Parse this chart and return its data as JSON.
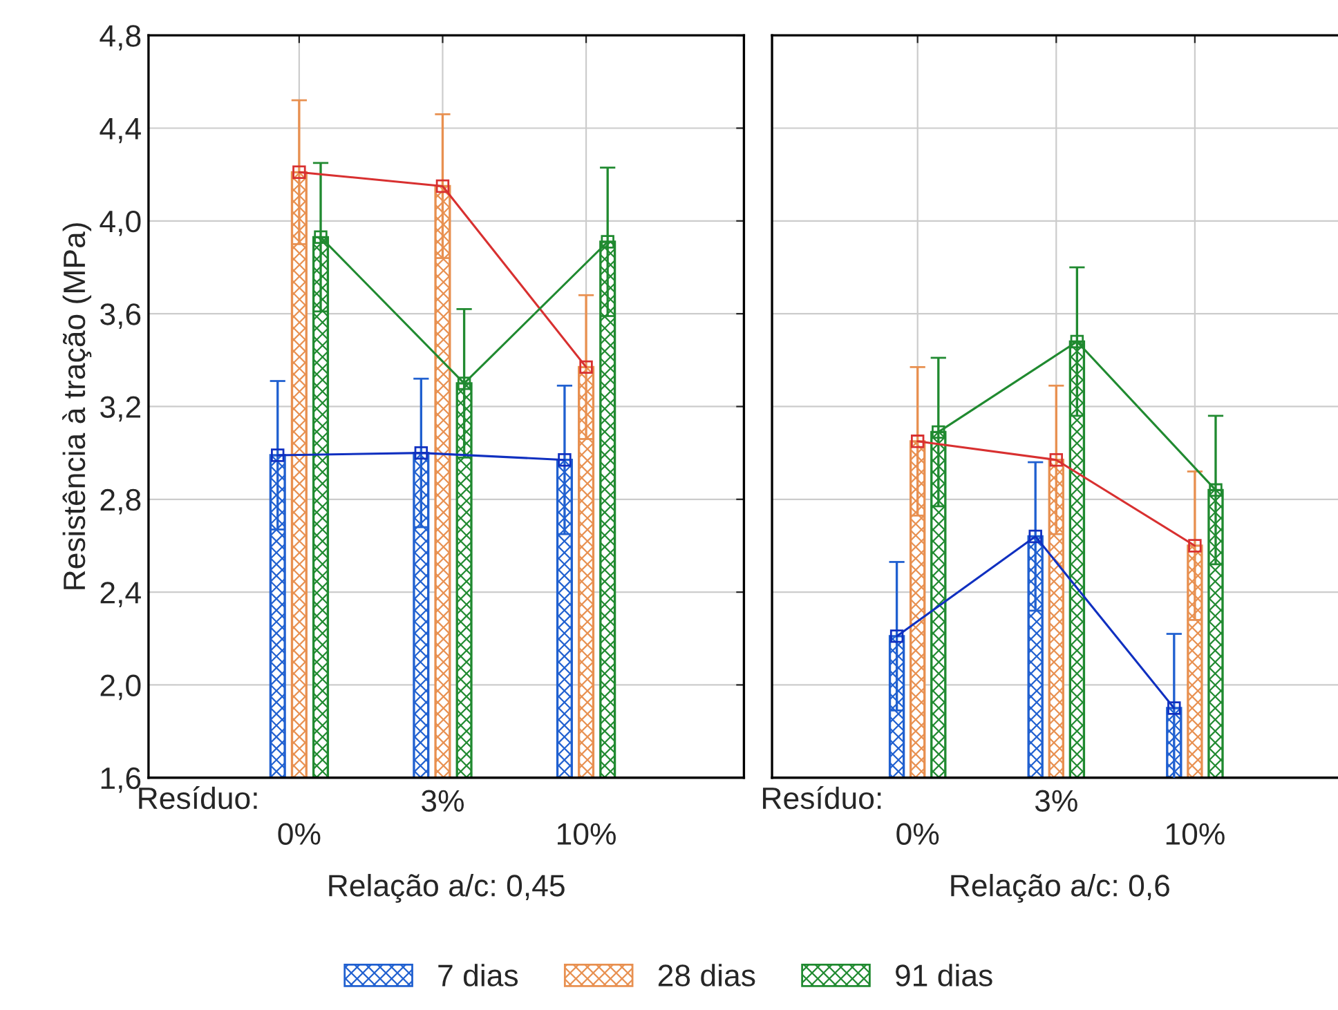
{
  "chart_data": [
    {
      "type": "bar",
      "xlabel": "Relação a/c: 0,45",
      "ylabel": "Resistência à tração (MPa)",
      "categories": [
        "0%",
        "3%",
        "10%"
      ],
      "annotations": [
        "Resíduo:"
      ],
      "ylim": [
        1.6,
        4.8
      ],
      "yticks": [
        {
          "value": 1.6,
          "label": "1,6"
        },
        {
          "value": 2.0,
          "label": "2,0"
        },
        {
          "value": 2.4,
          "label": "2,4"
        },
        {
          "value": 2.8,
          "label": "2,8"
        },
        {
          "value": 3.2,
          "label": "3,2"
        },
        {
          "value": 3.6,
          "label": "3,6"
        },
        {
          "value": 4.0,
          "label": "4,0"
        },
        {
          "value": 4.4,
          "label": "4,4"
        },
        {
          "value": 4.8,
          "label": "4,8"
        }
      ],
      "grid": true,
      "legend": "bottom",
      "series": [
        {
          "type": "bar",
          "name": "7 dias",
          "color": "#2060d0",
          "values": [
            2.99,
            3.0,
            2.97
          ],
          "errors": [
            0.32,
            0.32,
            0.32
          ]
        },
        {
          "type": "bar",
          "name": "28 dias",
          "color": "#e89050",
          "values": [
            4.21,
            4.15,
            3.37
          ],
          "errors": [
            0.31,
            0.31,
            0.31
          ]
        },
        {
          "type": "bar",
          "name": "91 dias",
          "color": "#208a30",
          "values": [
            3.93,
            3.3,
            3.91
          ],
          "errors": [
            0.32,
            0.32,
            0.32
          ]
        },
        {
          "type": "line",
          "color": "#1030c0",
          "marker": "square",
          "values": [
            2.99,
            3.0,
            2.97
          ]
        },
        {
          "type": "line",
          "color": "#d83030",
          "marker": "square",
          "values": [
            4.21,
            4.15,
            3.37
          ]
        },
        {
          "type": "line",
          "color": "#208a30",
          "marker": "square",
          "values": [
            3.93,
            3.3,
            3.91
          ]
        }
      ]
    },
    {
      "type": "bar",
      "xlabel": "Relação a/c: 0,6",
      "categories": [
        "0%",
        "3%",
        "10%"
      ],
      "annotations": [
        "Resíduo:"
      ],
      "tick_labels": "x",
      "ylim": [
        1.6,
        4.8
      ],
      "yticks": [
        {
          "value": 1.6,
          "label": null
        },
        {
          "value": 2.0,
          "label": null
        },
        {
          "value": 2.4,
          "label": null
        },
        {
          "value": 2.8,
          "label": null
        },
        {
          "value": 3.2,
          "label": null
        },
        {
          "value": 3.6,
          "label": null
        },
        {
          "value": 4.0,
          "label": null
        },
        {
          "value": 4.4,
          "label": null
        },
        {
          "value": 4.8,
          "label": null
        }
      ],
      "grid": true,
      "series": [
        {
          "type": "bar",
          "name": "7 dias",
          "color": "#2060d0",
          "values": [
            2.21,
            2.64,
            1.9
          ],
          "errors": [
            0.32,
            0.32,
            0.32
          ]
        },
        {
          "type": "bar",
          "name": "28 dias",
          "color": "#e89050",
          "values": [
            3.05,
            2.97,
            2.6
          ],
          "errors": [
            0.32,
            0.32,
            0.32
          ]
        },
        {
          "type": "bar",
          "name": "91 dias",
          "color": "#208a30",
          "values": [
            3.09,
            3.48,
            2.84
          ],
          "errors": [
            0.32,
            0.32,
            0.32
          ]
        },
        {
          "type": "line",
          "color": "#1030c0",
          "marker": "square",
          "values": [
            2.21,
            2.64,
            1.9
          ]
        },
        {
          "type": "line",
          "color": "#d83030",
          "marker": "square",
          "values": [
            3.05,
            2.97,
            2.6
          ]
        },
        {
          "type": "line",
          "color": "#208a30",
          "marker": "square",
          "values": [
            3.09,
            3.48,
            2.84
          ]
        }
      ]
    }
  ]
}
